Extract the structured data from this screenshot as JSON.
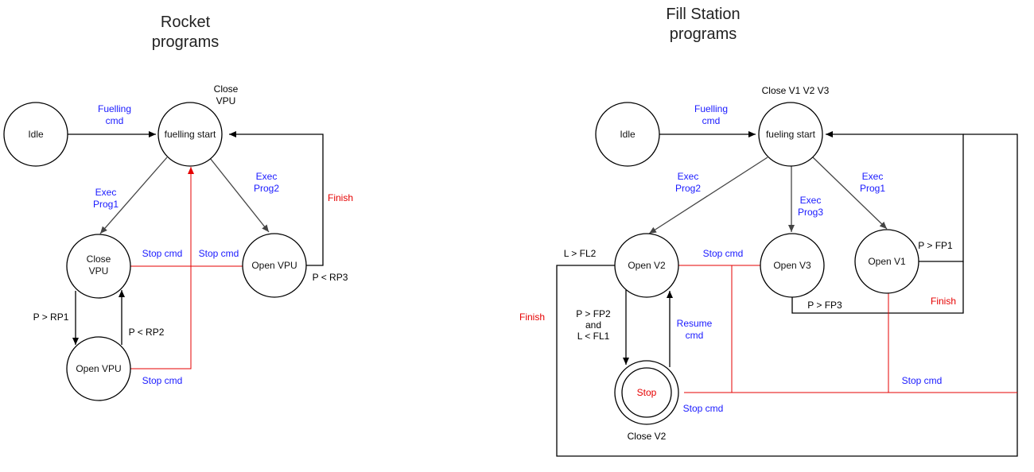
{
  "colors": {
    "black": "#000000",
    "blue": "#1a1aff",
    "red": "#e60000",
    "grey": "#555555"
  },
  "rocket": {
    "title": [
      "Rocket",
      "programs"
    ],
    "nodes": {
      "idle": "Idle",
      "fuelling_start": "fuelling start",
      "close_vpu": [
        "Close",
        "VPU"
      ],
      "open_vpu_right": "Open VPU",
      "open_vpu_bottom": "Open VPU"
    },
    "labels": {
      "close_vpu_top": [
        "Close",
        "VPU"
      ],
      "fuelling_cmd": [
        "Fuelling",
        "cmd"
      ],
      "exec_prog1": [
        "Exec",
        "Prog1"
      ],
      "exec_prog2": [
        "Exec",
        "Prog2"
      ],
      "finish": "Finish",
      "stop_cmd_left": "Stop cmd",
      "stop_cmd_right": "Stop cmd",
      "p_rp3": "P < RP3",
      "p_rp1": "P > RP1",
      "p_rp2": "P < RP2",
      "stop_cmd_bottom": "Stop cmd"
    }
  },
  "fill": {
    "title": [
      "Fill Station",
      "programs"
    ],
    "nodes": {
      "idle": "Idle",
      "fueling_start": "fueling start",
      "open_v2": "Open V2",
      "open_v3": "Open V3",
      "open_v1": "Open V1",
      "stop": "Stop"
    },
    "labels": {
      "close_v123": "Close V1 V2 V3",
      "fuelling_cmd": [
        "Fuelling",
        "cmd"
      ],
      "exec_prog2": [
        "Exec",
        "Prog2"
      ],
      "exec_prog3": [
        "Exec",
        "Prog3"
      ],
      "exec_prog1": [
        "Exec",
        "Prog1"
      ],
      "l_fl2": "L > FL2",
      "stop_cmd_top": "Stop cmd",
      "p_fp1": "P > FP1",
      "finish_right": "Finish",
      "p_fp3": "P > FP3",
      "finish_left": "Finish",
      "p_fp2": [
        "P > FP2",
        "and",
        "L < FL1"
      ],
      "resume_cmd": [
        "Resume",
        "cmd"
      ],
      "stop_cmd_right": "Stop cmd",
      "stop_cmd_bottom": "Stop cmd",
      "close_v2": "Close V2"
    }
  }
}
